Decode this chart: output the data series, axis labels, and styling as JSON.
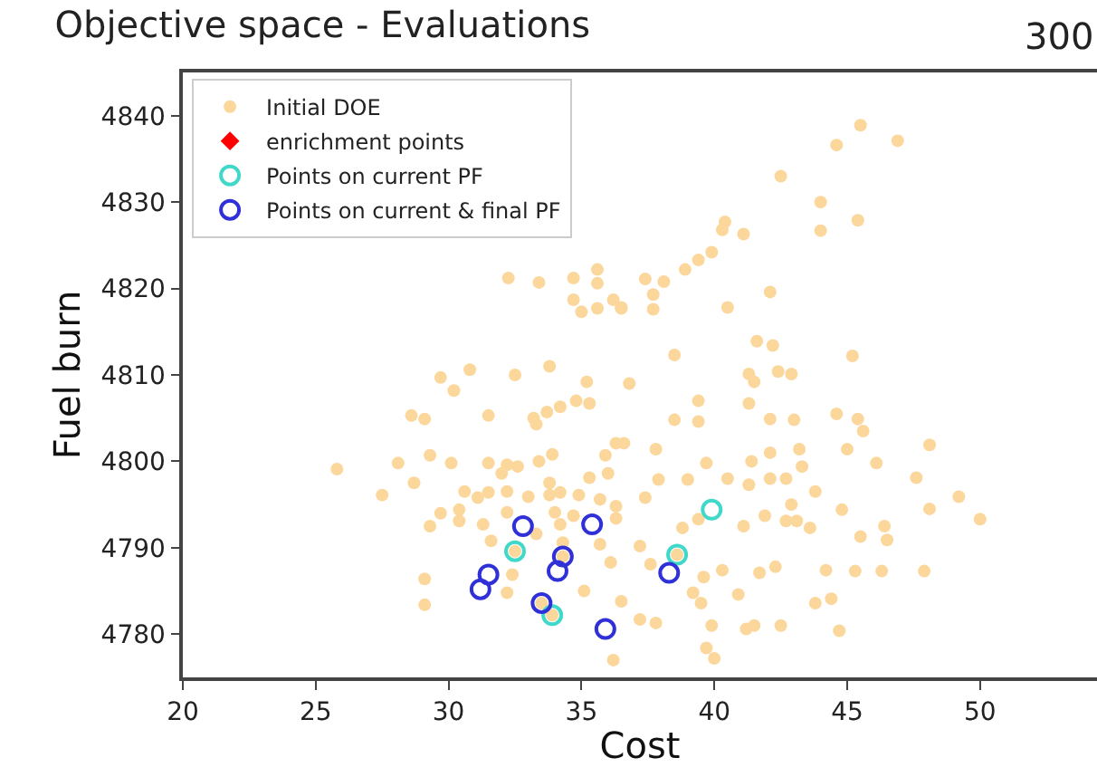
{
  "chart_data": {
    "type": "scatter",
    "title": "Objective space - Evaluations",
    "annotations": [
      "300"
    ],
    "xlabel": "Cost",
    "ylabel": "Fuel burn",
    "xlim": [
      20,
      54.4
    ],
    "xticks": [
      20,
      25,
      30,
      35,
      40,
      45,
      50
    ],
    "ylim": [
      4775,
      4845
    ],
    "yticks": [
      4780,
      4790,
      4800,
      4810,
      4820,
      4830,
      4840
    ],
    "legend": "top left",
    "series": [
      {
        "name": "Initial DOE",
        "color": "#fcd79c",
        "marker": "circle",
        "x": [
          32.25,
          33.4,
          34.7,
          35.6,
          35.6,
          34.7,
          35.0,
          35.6,
          36.2,
          36.5,
          29.7,
          30.2,
          30.8,
          32.5,
          33.8,
          35.2,
          36.8,
          28.6,
          29.1,
          31.5,
          33.2,
          33.3,
          33.7,
          34.2,
          34.8,
          35.3,
          45.5,
          46.9,
          44.6,
          42.5,
          44.0,
          45.4,
          44.0,
          40.4,
          40.3,
          41.1,
          39.9,
          39.4,
          38.9,
          37.4,
          38.1,
          37.7,
          37.7,
          36.5,
          40.5,
          42.1,
          41.6,
          42.2,
          38.5,
          45.2,
          41.3,
          41.5,
          42.4,
          42.9,
          39.4,
          41.3,
          38.5,
          39.4,
          42.1,
          43.0,
          44.6,
          45.4,
          25.8,
          28.1,
          28.7,
          27.5,
          29.3,
          30.1,
          29.7,
          29.3,
          30.4,
          30.4,
          30.6,
          31.1,
          31.5,
          31.5,
          32.0,
          32.2,
          32.6,
          32.2,
          32.2,
          31.3,
          31.6,
          32.4,
          32.2,
          29.1,
          29.1,
          33.0,
          33.3,
          33.4,
          33.9,
          33.8,
          33.8,
          34.0,
          34.2,
          34.9,
          34.7,
          34.3,
          34.2,
          35.1,
          35.7,
          35.3,
          36.0,
          36.3,
          35.9,
          35.7,
          36.1,
          36.3,
          36.5,
          36.2,
          45.6,
          45.0,
          46.1,
          48.1,
          47.6,
          49.2,
          48.1,
          50.0,
          46.4,
          46.5,
          45.5,
          47.9,
          46.3,
          45.3,
          44.2,
          44.4,
          44.7,
          43.8,
          42.5,
          41.5,
          41.2,
          42.3,
          41.7,
          40.9,
          39.9,
          39.7,
          40.0,
          37.8,
          37.2,
          39.5,
          39.2,
          39.6,
          40.3,
          37.2,
          37.6,
          38.8,
          39.4,
          41.1,
          41.9,
          42.7,
          43.1,
          43.6,
          42.9,
          43.8,
          44.8,
          40.5,
          42.1,
          42.7,
          43.3,
          41.4,
          42.1,
          43.2,
          37.9,
          39.0,
          37.4,
          36.3,
          39.7,
          37.8,
          36.6,
          41.3,
          34.3,
          33.5,
          33.9,
          32.5,
          38.6
        ],
        "values": [
          4821.2,
          4820.7,
          4821.2,
          4822.2,
          4820.6,
          4818.7,
          4817.3,
          4817.7,
          4818.7,
          4817.7,
          4809.7,
          4808.2,
          4810.6,
          4810.0,
          4811.0,
          4809.2,
          4809.0,
          4805.3,
          4804.9,
          4805.3,
          4805.0,
          4804.3,
          4805.7,
          4806.3,
          4807.0,
          4806.7,
          4838.9,
          4837.1,
          4836.6,
          4833.0,
          4830.0,
          4827.9,
          4826.7,
          4827.7,
          4826.8,
          4826.3,
          4824.2,
          4823.3,
          4822.2,
          4821.1,
          4820.8,
          4819.3,
          4817.6,
          4817.8,
          4817.8,
          4819.6,
          4813.9,
          4813.4,
          4812.3,
          4812.2,
          4810.1,
          4809.2,
          4810.4,
          4810.1,
          4807.0,
          4806.7,
          4804.8,
          4804.6,
          4804.9,
          4804.8,
          4805.5,
          4804.9,
          4799.1,
          4799.8,
          4797.5,
          4796.1,
          4800.7,
          4799.8,
          4794.0,
          4792.5,
          4794.4,
          4793.1,
          4796.5,
          4795.8,
          4799.8,
          4796.4,
          4798.6,
          4799.6,
          4799.4,
          4796.5,
          4794.1,
          4792.7,
          4790.8,
          4786.9,
          4784.8,
          4786.4,
          4783.4,
          4795.9,
          4791.6,
          4800.0,
          4800.8,
          4797.5,
          4796.1,
          4794.1,
          4796.4,
          4796.1,
          4793.7,
          4790.6,
          4792.7,
          4785.0,
          4795.6,
          4798.1,
          4798.6,
          4802.1,
          4800.7,
          4790.4,
          4788.3,
          4793.4,
          4783.8,
          4777.0,
          4803.5,
          4801.4,
          4799.8,
          4801.9,
          4798.1,
          4795.9,
          4794.5,
          4793.3,
          4792.5,
          4790.9,
          4791.3,
          4787.3,
          4787.3,
          4787.3,
          4787.4,
          4784.1,
          4780.4,
          4783.6,
          4781.0,
          4781.0,
          4780.6,
          4787.8,
          4787.1,
          4784.6,
          4781.0,
          4778.4,
          4777.2,
          4781.3,
          4781.7,
          4783.6,
          4784.8,
          4786.6,
          4787.4,
          4790.2,
          4788.1,
          4792.3,
          4793.3,
          4792.5,
          4793.7,
          4793.1,
          4793.1,
          4792.3,
          4795.0,
          4796.5,
          4794.4,
          4798.0,
          4798.0,
          4798.0,
          4799.4,
          4800.0,
          4801.0,
          4801.4,
          4797.9,
          4797.9,
          4795.8,
          4794.8,
          4799.8,
          4801.4,
          4802.1,
          4797.3,
          4789.0,
          4783.6,
          4782.2,
          4789.6,
          4789.2
        ]
      },
      {
        "name": "enrichment points",
        "color": "#ff0000",
        "marker": "diamond"
      },
      {
        "name": "Points on current PF",
        "color": "#40d8c8",
        "marker": "circle-open",
        "x": [
          32.5,
          33.9,
          39.9,
          38.6
        ],
        "values": [
          4789.6,
          4782.2,
          4794.4,
          4789.2
        ]
      },
      {
        "name": "Points on current & final PF",
        "color": "#3030d8",
        "marker": "circle-open",
        "x": [
          32.8,
          35.4,
          34.3,
          34.1,
          31.5,
          31.2,
          33.5,
          35.9,
          38.3
        ],
        "values": [
          4792.5,
          4792.7,
          4789.0,
          4787.3,
          4786.9,
          4785.2,
          4783.6,
          4780.6,
          4787.1
        ]
      }
    ]
  }
}
